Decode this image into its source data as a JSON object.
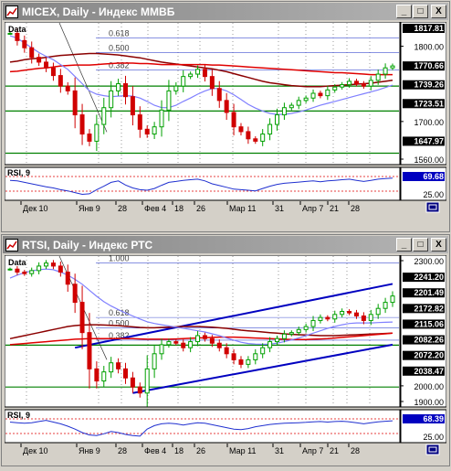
{
  "colors": {
    "candle_up": "#00a000",
    "candle_down": "#d00000",
    "sma_long": "#8b0000",
    "sma_mid": "#e00000",
    "sma_short": "#8080ff",
    "rsi": "#2030d0",
    "hline": "#008000",
    "channel": "#0000c0"
  },
  "windows": [
    {
      "title": "MICEX, Daily - Индекс ММВБ",
      "buttons": {
        "minimize": "_",
        "maximize": "□",
        "close": "X"
      },
      "main_label": "Data",
      "price_axis": [
        {
          "label": "1817.81",
          "boxed": true
        },
        {
          "label": "1800.00",
          "boxed": false
        },
        {
          "label": "1770.66",
          "boxed": true
        },
        {
          "label": "1739.26",
          "boxed": true
        },
        {
          "label": "1723.51",
          "boxed": true
        },
        {
          "label": "1700.00",
          "boxed": false
        },
        {
          "label": "1647.97",
          "boxed": true
        },
        {
          "label": "1560.00",
          "boxed": false
        }
      ],
      "fib_labels": [
        "0.618",
        "0.500",
        "0.382"
      ],
      "rsi": {
        "label": "RSI, 9",
        "value": "69.68",
        "low": "25.00"
      },
      "dates": [
        "Дек 10",
        "Янв 9",
        "28",
        "Фев 4",
        "18",
        "26",
        "Мар 11",
        "31",
        "Апр 7",
        "21",
        "28"
      ],
      "chart_data": {
        "type": "candlestick",
        "ylim": [
          1540,
          1830
        ],
        "close": [
          1810,
          1795,
          1780,
          1760,
          1750,
          1738,
          1722,
          1700,
          1690,
          1640,
          1600,
          1585,
          1620,
          1655,
          1690,
          1705,
          1678,
          1640,
          1610,
          1600,
          1615,
          1650,
          1690,
          1700,
          1720,
          1725,
          1735,
          1720,
          1695,
          1670,
          1645,
          1615,
          1605,
          1590,
          1585,
          1600,
          1620,
          1640,
          1655,
          1660,
          1670,
          1675,
          1685,
          1680,
          1692,
          1698,
          1703,
          1710,
          1705,
          1700,
          1712,
          1725,
          1738,
          1742
        ],
        "sma_long": [
          1750,
          1752,
          1755,
          1757,
          1758,
          1760,
          1762,
          1764,
          1765,
          1766,
          1767,
          1768,
          1768,
          1767,
          1766,
          1765,
          1763,
          1761,
          1759,
          1756,
          1753,
          1750,
          1748,
          1746,
          1744,
          1742,
          1740,
          1738,
          1736,
          1733,
          1730,
          1726,
          1722,
          1718,
          1714,
          1710,
          1707,
          1705,
          1703,
          1701,
          1700,
          1699,
          1699,
          1699,
          1700,
          1701,
          1702,
          1703,
          1704,
          1705,
          1706,
          1708,
          1710,
          1712
        ],
        "sma_mid": [
          1730,
          1731,
          1733,
          1735,
          1737,
          1738,
          1740,
          1742,
          1743,
          1744,
          1744,
          1744,
          1745,
          1746,
          1747,
          1748,
          1748,
          1748,
          1747,
          1747,
          1746,
          1745,
          1745,
          1745,
          1745,
          1745,
          1745,
          1745,
          1744,
          1744,
          1743,
          1742,
          1741,
          1740,
          1739,
          1738,
          1737,
          1736,
          1735,
          1734,
          1733,
          1732,
          1731,
          1730,
          1729,
          1728,
          1728,
          1727,
          1726,
          1725,
          1724,
          1724,
          1724,
          1724
        ],
        "sma_short": [
          1805,
          1800,
          1790,
          1780,
          1770,
          1762,
          1755,
          1745,
          1735,
          1720,
          1705,
          1690,
          1683,
          1680,
          1678,
          1679,
          1680,
          1679,
          1675,
          1668,
          1660,
          1655,
          1655,
          1660,
          1668,
          1675,
          1683,
          1690,
          1695,
          1695,
          1690,
          1682,
          1672,
          1662,
          1654,
          1648,
          1643,
          1641,
          1641,
          1643,
          1646,
          1650,
          1655,
          1660,
          1664,
          1668,
          1672,
          1676,
          1680,
          1684,
          1688,
          1692,
          1697,
          1702
        ],
        "fib": [
          {
            "level": "0.618",
            "value": 1800
          },
          {
            "level": "0.500",
            "value": 1770
          },
          {
            "level": "0.382",
            "value": 1734
          }
        ],
        "hlines": [
          1700,
          1647.97,
          1560
        ],
        "rsi": [
          62,
          60,
          55,
          50,
          45,
          40,
          36,
          30,
          26,
          20,
          14,
          16,
          30,
          42,
          55,
          60,
          46,
          36,
          30,
          28,
          34,
          45,
          55,
          58,
          62,
          64,
          66,
          60,
          50,
          44,
          38,
          32,
          30,
          28,
          26,
          34,
          42,
          48,
          52,
          54,
          56,
          58,
          60,
          57,
          60,
          62,
          64,
          66,
          62,
          58,
          62,
          66,
          68,
          69.68
        ]
      }
    },
    {
      "title": "RTSI, Daily - Индекс РТС",
      "buttons": {
        "minimize": "_",
        "maximize": "□",
        "close": "X"
      },
      "main_label": "Data",
      "price_axis": [
        {
          "label": "2300.00",
          "boxed": false
        },
        {
          "label": "2241.20",
          "boxed": true
        },
        {
          "label": "2201.49",
          "boxed": true
        },
        {
          "label": "2172.82",
          "boxed": true
        },
        {
          "label": "2115.06",
          "boxed": true
        },
        {
          "label": "2082.26",
          "boxed": true
        },
        {
          "label": "2072.20",
          "boxed": true
        },
        {
          "label": "2038.47",
          "boxed": true
        },
        {
          "label": "2000.00",
          "boxed": false
        },
        {
          "label": "1900.00",
          "boxed": false
        }
      ],
      "fib_labels": [
        "1.000",
        "0.618",
        "0.500",
        "0.382"
      ],
      "rsi": {
        "label": "RSI, 9",
        "value": "68.39",
        "low": "25.00"
      },
      "dates": [
        "Дек 10",
        "Янв 9",
        "28",
        "Фев 4",
        "18",
        "26",
        "Мар 11",
        "31",
        "Апр 7",
        "21",
        "28"
      ],
      "chart_data": {
        "type": "candlestick",
        "ylim": [
          1840,
          2330
        ],
        "close": [
          2290,
          2280,
          2275,
          2285,
          2300,
          2310,
          2300,
          2280,
          2240,
          2180,
          2080,
          1960,
          1920,
          1950,
          1980,
          1960,
          1930,
          1900,
          1880,
          1960,
          2010,
          2040,
          2050,
          2045,
          2030,
          2050,
          2070,
          2060,
          2045,
          2030,
          2010,
          1990,
          1975,
          1990,
          2010,
          2030,
          2050,
          2060,
          2075,
          2080,
          2090,
          2100,
          2120,
          2130,
          2125,
          2140,
          2150,
          2145,
          2135,
          2120,
          2140,
          2160,
          2180,
          2201
        ],
        "sma_long": [
          2060,
          2065,
          2070,
          2075,
          2080,
          2085,
          2090,
          2095,
          2100,
          2103,
          2105,
          2106,
          2106,
          2105,
          2104,
          2103,
          2101,
          2099,
          2097,
          2096,
          2096,
          2097,
          2098,
          2099,
          2100,
          2100,
          2100,
          2099,
          2098,
          2096,
          2094,
          2091,
          2088,
          2086,
          2084,
          2082,
          2080,
          2078,
          2076,
          2074,
          2073,
          2072,
          2071,
          2070,
          2070,
          2070,
          2071,
          2072,
          2073,
          2074,
          2075,
          2076,
          2077,
          2078
        ],
        "sma_mid": [
          2040,
          2042,
          2044,
          2046,
          2048,
          2050,
          2052,
          2054,
          2056,
          2058,
          2059,
          2060,
          2060,
          2060,
          2060,
          2060,
          2060,
          2060,
          2059,
          2058,
          2058,
          2058,
          2058,
          2059,
          2060,
          2061,
          2062,
          2063,
          2064,
          2065,
          2065,
          2065,
          2064,
          2063,
          2062,
          2061,
          2060,
          2059,
          2058,
          2057,
          2057,
          2057,
          2058,
          2059,
          2060,
          2062,
          2064,
          2066,
          2068,
          2070,
          2072,
          2074,
          2076,
          2078
        ],
        "sma_short": [
          2260,
          2270,
          2278,
          2284,
          2288,
          2290,
          2288,
          2280,
          2270,
          2256,
          2240,
          2220,
          2200,
          2182,
          2168,
          2156,
          2145,
          2135,
          2125,
          2116,
          2110,
          2106,
          2102,
          2098,
          2094,
          2090,
          2086,
          2082,
          2076,
          2070,
          2062,
          2055,
          2048,
          2044,
          2042,
          2041,
          2042,
          2045,
          2050,
          2056,
          2062,
          2070,
          2078,
          2086,
          2094,
          2100,
          2106,
          2110,
          2112,
          2112,
          2112,
          2113,
          2114,
          2115
        ],
        "fib": [
          {
            "level": "1.000",
            "value": 2310
          },
          {
            "level": "0.618",
            "value": 2130
          },
          {
            "level": "0.500",
            "value": 2095
          },
          {
            "level": "0.382",
            "value": 2055
          }
        ],
        "hlines": [
          2038.47,
          1900
        ],
        "channel": {
          "upper": [
            [
              9,
              2030
            ],
            [
              53,
              2241
            ]
          ],
          "lower": [
            [
              17,
              1880
            ],
            [
              53,
              2040
            ]
          ]
        },
        "rsi": [
          64,
          62,
          60,
          62,
          66,
          70,
          64,
          58,
          50,
          40,
          28,
          20,
          18,
          24,
          32,
          28,
          22,
          18,
          16,
          40,
          52,
          58,
          60,
          58,
          54,
          58,
          62,
          60,
          55,
          50,
          45,
          40,
          38,
          42,
          48,
          52,
          56,
          58,
          60,
          61,
          62,
          63,
          65,
          66,
          64,
          66,
          67,
          65,
          62,
          58,
          62,
          65,
          67,
          68.39
        ]
      }
    }
  ]
}
